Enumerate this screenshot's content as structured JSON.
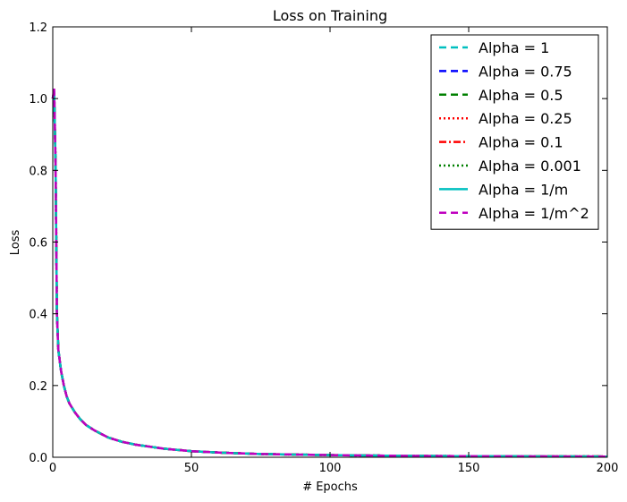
{
  "chart_data": {
    "type": "line",
    "title": "Loss on Training",
    "xlabel": "# Epochs",
    "ylabel": "Loss",
    "xlim": [
      0,
      200
    ],
    "ylim": [
      0,
      1.2
    ],
    "xticks": [
      0,
      50,
      100,
      150,
      200
    ],
    "yticks": [
      0.0,
      0.2,
      0.4,
      0.6,
      0.8,
      1.0,
      1.2
    ],
    "xtick_labels": [
      "0",
      "50",
      "100",
      "150",
      "200"
    ],
    "ytick_labels": [
      "0.0",
      "0.2",
      "0.4",
      "0.6",
      "0.8",
      "1.0",
      "1.2"
    ],
    "grid": false,
    "legend_position": "top-right",
    "x": [
      0,
      0.5,
      1,
      1.5,
      2,
      3,
      4,
      5,
      6,
      8,
      10,
      12,
      15,
      20,
      25,
      30,
      40,
      50,
      60,
      75,
      100,
      125,
      150,
      175,
      200
    ],
    "series": [
      {
        "name": "Alpha = 1",
        "color": "#00BFBF",
        "style": "dashed",
        "values": [
          1.0,
          1.02,
          0.82,
          0.4,
          0.3,
          0.24,
          0.2,
          0.17,
          0.15,
          0.125,
          0.105,
          0.09,
          0.075,
          0.055,
          0.043,
          0.035,
          0.024,
          0.017,
          0.013,
          0.009,
          0.006,
          0.004,
          0.003,
          0.0025,
          0.002
        ]
      },
      {
        "name": "Alpha = 0.75",
        "color": "#0000FF",
        "style": "dashed",
        "values": [
          1.0,
          1.02,
          0.82,
          0.4,
          0.3,
          0.24,
          0.2,
          0.17,
          0.15,
          0.125,
          0.105,
          0.09,
          0.075,
          0.055,
          0.043,
          0.035,
          0.024,
          0.017,
          0.013,
          0.009,
          0.006,
          0.004,
          0.003,
          0.0025,
          0.002
        ]
      },
      {
        "name": "Alpha = 0.5",
        "color": "#008000",
        "style": "dashed",
        "values": [
          1.0,
          1.02,
          0.82,
          0.4,
          0.3,
          0.24,
          0.2,
          0.17,
          0.15,
          0.125,
          0.105,
          0.09,
          0.075,
          0.055,
          0.043,
          0.035,
          0.024,
          0.017,
          0.013,
          0.009,
          0.006,
          0.004,
          0.003,
          0.0025,
          0.002
        ]
      },
      {
        "name": "Alpha = 0.25",
        "color": "#FF0000",
        "style": "dotted",
        "values": [
          1.0,
          1.02,
          0.82,
          0.4,
          0.3,
          0.24,
          0.2,
          0.17,
          0.15,
          0.125,
          0.105,
          0.09,
          0.075,
          0.055,
          0.043,
          0.035,
          0.024,
          0.017,
          0.013,
          0.009,
          0.006,
          0.004,
          0.003,
          0.0025,
          0.002
        ]
      },
      {
        "name": "Alpha = 0.1",
        "color": "#FF0000",
        "style": "dashdot",
        "values": [
          1.0,
          1.02,
          0.82,
          0.4,
          0.3,
          0.24,
          0.2,
          0.17,
          0.15,
          0.125,
          0.105,
          0.09,
          0.075,
          0.055,
          0.043,
          0.035,
          0.024,
          0.017,
          0.013,
          0.009,
          0.006,
          0.004,
          0.003,
          0.0025,
          0.002
        ]
      },
      {
        "name": "Alpha = 0.001",
        "color": "#008000",
        "style": "dotted",
        "values": [
          1.0,
          1.02,
          0.82,
          0.4,
          0.3,
          0.24,
          0.2,
          0.17,
          0.15,
          0.125,
          0.105,
          0.09,
          0.075,
          0.055,
          0.043,
          0.035,
          0.024,
          0.017,
          0.013,
          0.009,
          0.006,
          0.004,
          0.003,
          0.0025,
          0.002
        ]
      },
      {
        "name": "Alpha = 1/m",
        "color": "#00BFBF",
        "style": "solid",
        "values": [
          1.0,
          1.02,
          0.82,
          0.4,
          0.3,
          0.24,
          0.2,
          0.17,
          0.15,
          0.125,
          0.105,
          0.09,
          0.075,
          0.055,
          0.043,
          0.035,
          0.024,
          0.017,
          0.013,
          0.009,
          0.006,
          0.004,
          0.003,
          0.0025,
          0.002
        ]
      },
      {
        "name": "Alpha = 1/m^2",
        "color": "#BF00BF",
        "style": "dashed",
        "values": [
          1.0,
          1.03,
          0.82,
          0.4,
          0.3,
          0.24,
          0.2,
          0.17,
          0.15,
          0.125,
          0.105,
          0.09,
          0.075,
          0.055,
          0.043,
          0.035,
          0.024,
          0.017,
          0.013,
          0.009,
          0.006,
          0.004,
          0.003,
          0.0025,
          0.002
        ]
      }
    ]
  }
}
